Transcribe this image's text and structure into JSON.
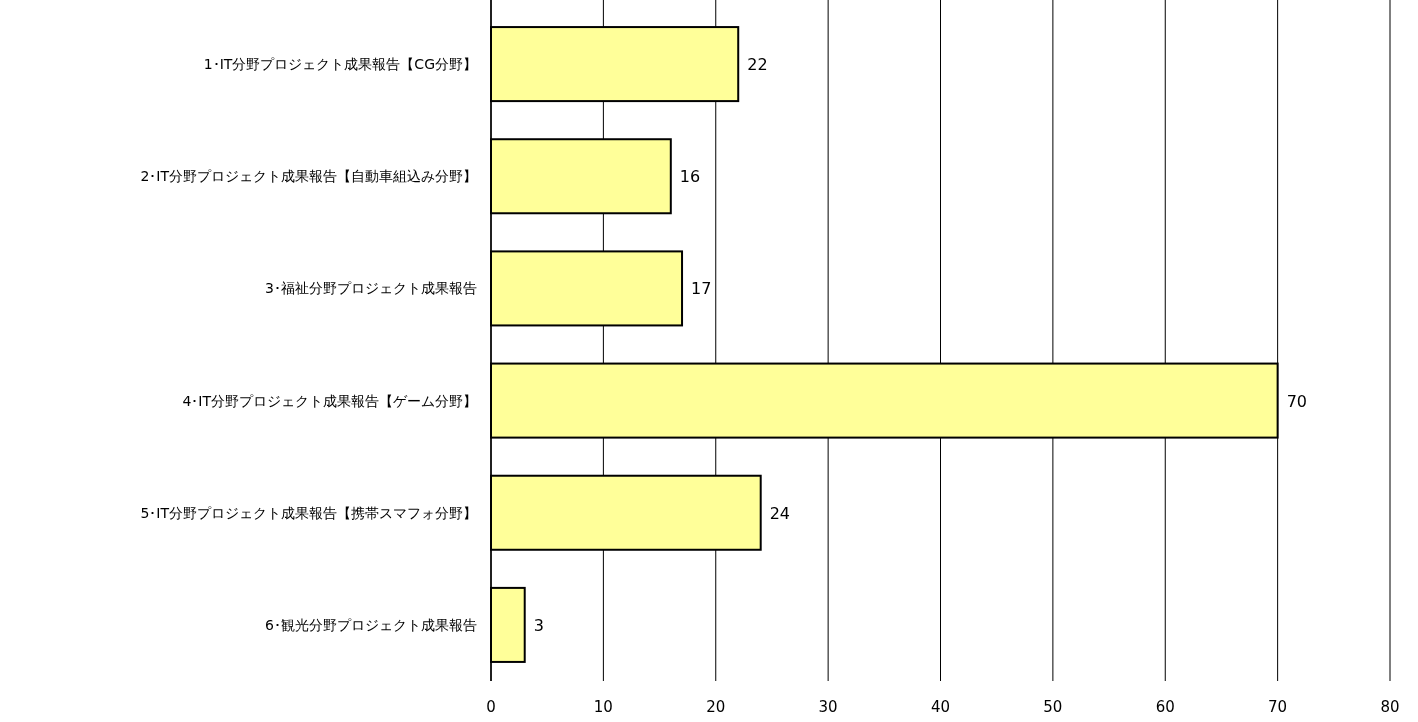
{
  "chart_data": {
    "type": "bar",
    "orientation": "horizontal",
    "categories": [
      "1･IT分野プロジェクト成果報告【CG分野】",
      "2･IT分野プロジェクト成果報告【自動車組込み分野】",
      "3･福祉分野プロジェクト成果報告",
      "4･IT分野プロジェクト成果報告【ゲーム分野】",
      "5･IT分野プロジェクト成果報告【携帯スマフォ分野】",
      "6･観光分野プロジェクト成果報告"
    ],
    "values": [
      22,
      16,
      17,
      70,
      24,
      3
    ],
    "color": "#ffff99",
    "xlim": [
      0,
      80
    ],
    "xticks": [
      0,
      10,
      20,
      30,
      40,
      50,
      60,
      70,
      80
    ],
    "grid": "x",
    "data_labels": true
  }
}
